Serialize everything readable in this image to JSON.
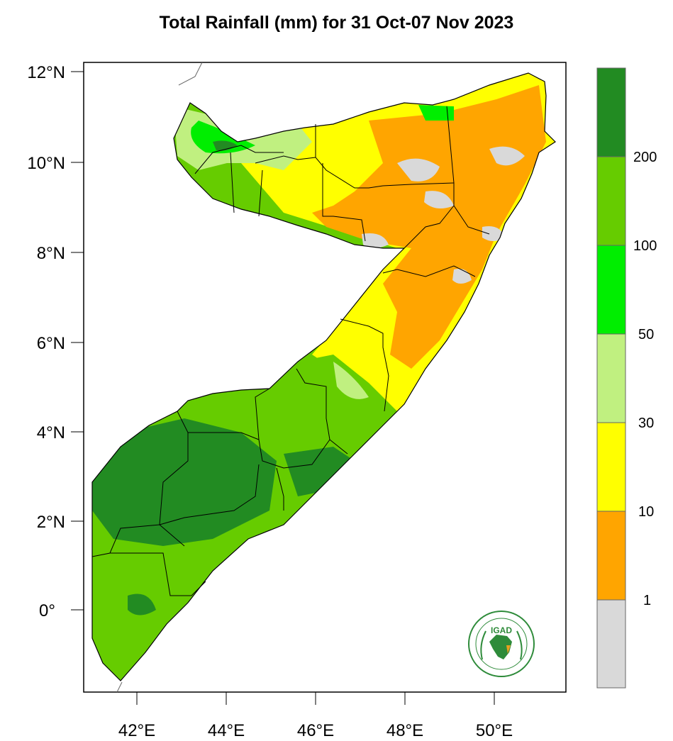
{
  "title": "Total Rainfall (mm) for 31 Oct-07 Nov 2023",
  "map": {
    "lat_ticks": [
      "12°N",
      "10°N",
      "8°N",
      "6°N",
      "4°N",
      "2°N",
      "0°"
    ],
    "lon_ticks": [
      "42°E",
      "44°E",
      "46°E",
      "48°E",
      "50°E"
    ],
    "extent": {
      "lon_min": 40.8,
      "lon_max": 51.6,
      "lat_min": -1.8,
      "lat_max": 12.2
    }
  },
  "colorbar": {
    "labels": [
      "200",
      "100",
      "50",
      "30",
      "10",
      "1"
    ],
    "bins": [
      {
        "range": "> 200",
        "color": "#228b22"
      },
      {
        "range": "100-200",
        "color": "#66cc00"
      },
      {
        "range": "50-100",
        "color": "#00ee00"
      },
      {
        "range": "30-50",
        "color": "#c0f080"
      },
      {
        "range": "10-30",
        "color": "#ffff00"
      },
      {
        "range": "1-10",
        "color": "#ffa500"
      },
      {
        "range": "< 1",
        "color": "#d9d9d9"
      }
    ]
  },
  "logo": {
    "text": "IGAD",
    "icon": "igad-logo-icon"
  }
}
